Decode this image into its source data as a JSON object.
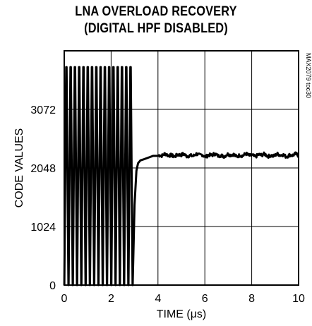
{
  "chart_data": {
    "type": "line",
    "title": "LNA OVERLOAD RECOVERY",
    "subtitle": "(DIGITAL HPF DISABLED)",
    "xlabel": "TIME (μs)",
    "ylabel": "CODE VALUES",
    "xlim": [
      0,
      10
    ],
    "ylim": [
      0,
      4096
    ],
    "xticks": [
      "0",
      "2",
      "4",
      "6",
      "8",
      "10"
    ],
    "yticks": [
      "0",
      "1024",
      "2048",
      "3072"
    ],
    "grid": true,
    "watermark": "MAX2079 toc30",
    "series": [
      {
        "color": "#000000",
        "segments": [
          {
            "description_type": "oscillation",
            "x_start": 0.0,
            "x_end": 2.92,
            "cycles": 16,
            "y_min": 0,
            "y_max": 3810
          },
          {
            "description_type": "recovery",
            "x": [
              2.92,
              3.0,
              3.08,
              3.15,
              3.25,
              3.4,
              3.6,
              3.8,
              4.0
            ],
            "y": [
              0,
              1400,
              2000,
              2130,
              2180,
              2200,
              2230,
              2260,
              2260
            ]
          },
          {
            "description_type": "noisy_plateau",
            "x_start": 4.0,
            "x_end": 10.0,
            "level": 2270,
            "noise": 40
          }
        ]
      }
    ]
  }
}
